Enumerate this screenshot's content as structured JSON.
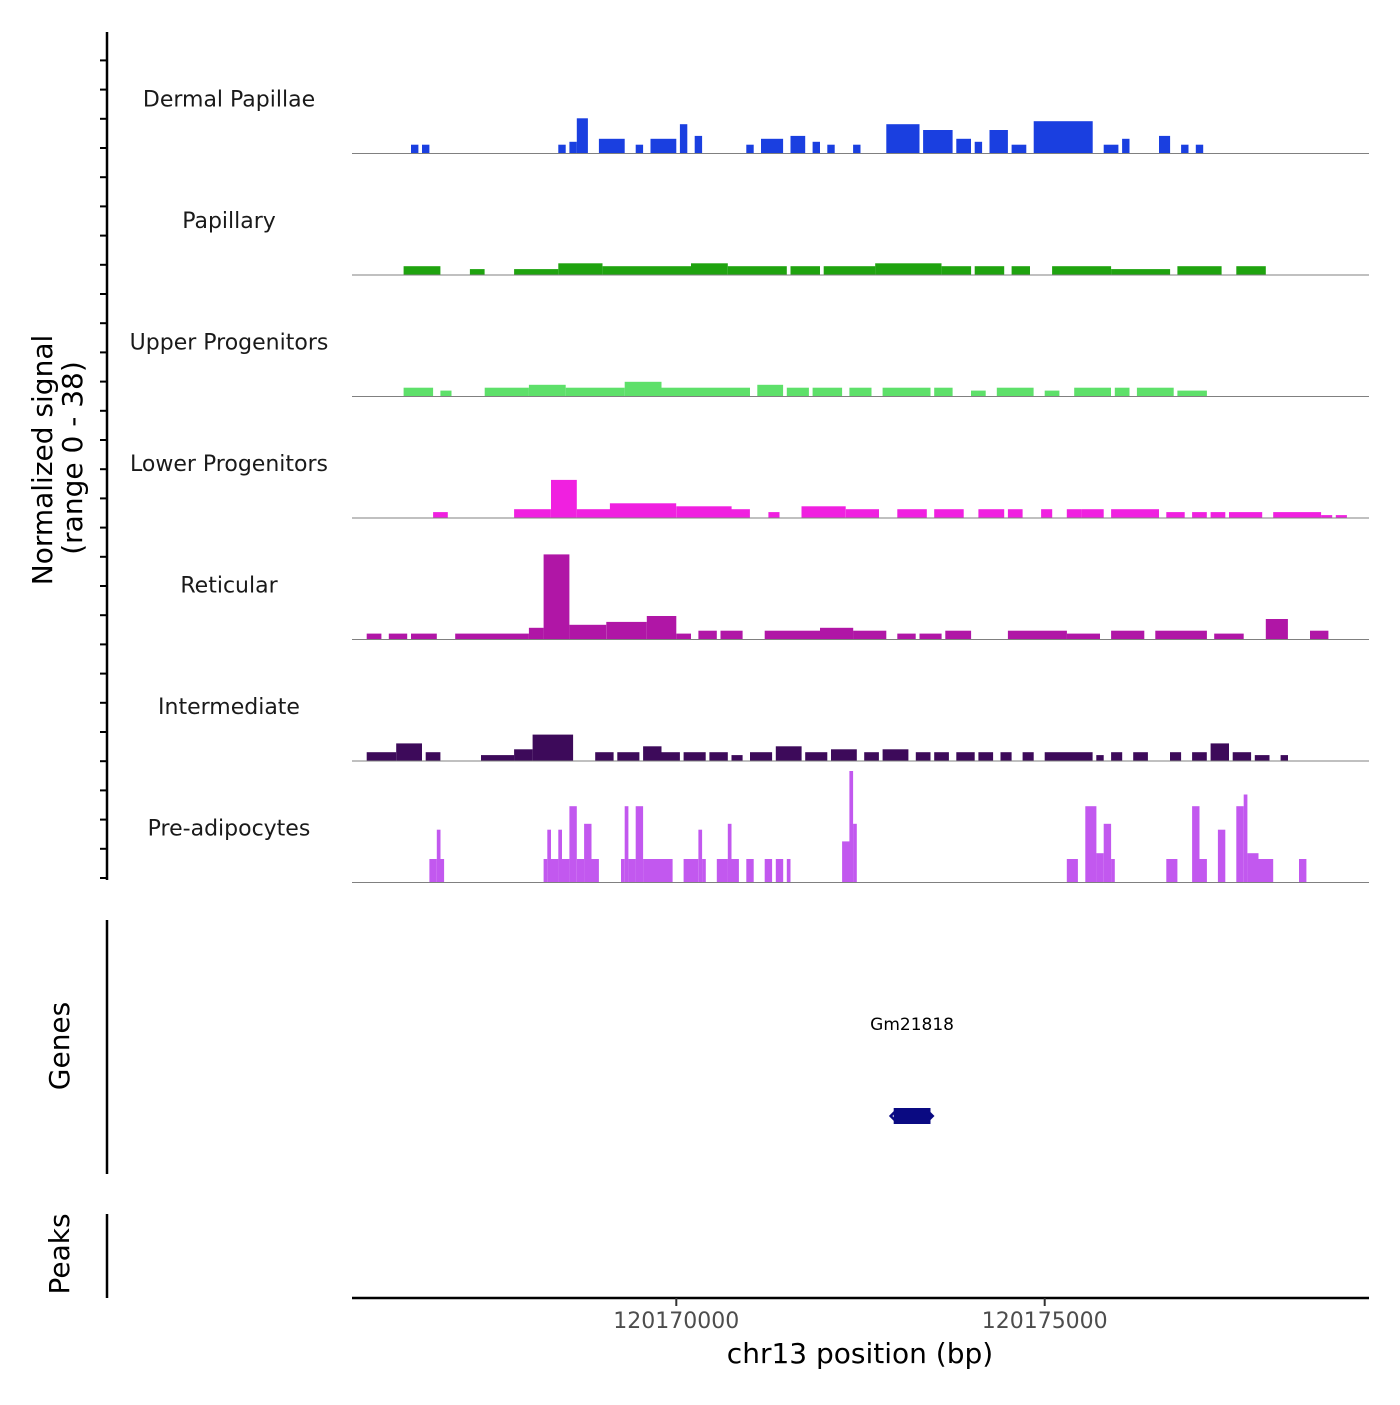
{
  "chart_data": {
    "type": "area",
    "title": "",
    "region": {
      "chromosome": "chr13",
      "start": 120165600,
      "end": 120179400
    },
    "ylabel_line1": "Normalized signal",
    "ylabel_line2": "(range 0 - 38)",
    "ylim": [
      0,
      38
    ],
    "xlabel": "chr13 position (bp)",
    "x_ticks": [
      {
        "value": 120170000,
        "label": "120170000"
      },
      {
        "value": 120175000,
        "label": "120175000"
      }
    ],
    "tracks": [
      {
        "name": "Dermal Papillae",
        "color": "#1a3fe0",
        "segments": [
          [
            120166400,
            120166500,
            3
          ],
          [
            120166550,
            120166650,
            3
          ],
          [
            120168400,
            120168500,
            3
          ],
          [
            120168550,
            120168650,
            4
          ],
          [
            120168650,
            120168800,
            12
          ],
          [
            120168950,
            120169300,
            5
          ],
          [
            120169450,
            120169550,
            3
          ],
          [
            120169650,
            120170000,
            5
          ],
          [
            120170050,
            120170150,
            10
          ],
          [
            120170250,
            120170350,
            6
          ],
          [
            120170950,
            120171050,
            3
          ],
          [
            120171150,
            120171450,
            5
          ],
          [
            120171550,
            120171750,
            6
          ],
          [
            120171850,
            120171950,
            4
          ],
          [
            120172050,
            120172150,
            3
          ],
          [
            120172400,
            120172500,
            3
          ],
          [
            120172850,
            120173300,
            10
          ],
          [
            120173350,
            120173750,
            8
          ],
          [
            120173800,
            120174000,
            5
          ],
          [
            120174050,
            120174150,
            4
          ],
          [
            120174250,
            120174500,
            8
          ],
          [
            120174550,
            120174750,
            3
          ],
          [
            120174850,
            120175650,
            11
          ],
          [
            120175800,
            120176000,
            3
          ],
          [
            120176050,
            120176150,
            5
          ],
          [
            120176550,
            120176700,
            6
          ],
          [
            120176850,
            120176950,
            3
          ],
          [
            120177050,
            120177150,
            3
          ]
        ]
      },
      {
        "name": "Papillary",
        "color": "#1fa30f",
        "segments": [
          [
            120166300,
            120166800,
            3
          ],
          [
            120167200,
            120167400,
            2
          ],
          [
            120167800,
            120168400,
            2
          ],
          [
            120168400,
            120169000,
            4
          ],
          [
            120169000,
            120170200,
            3
          ],
          [
            120170200,
            120170700,
            4
          ],
          [
            120170700,
            120171500,
            3
          ],
          [
            120171550,
            120171950,
            3
          ],
          [
            120172000,
            120172700,
            3
          ],
          [
            120172700,
            120173600,
            4
          ],
          [
            120173600,
            120174000,
            3
          ],
          [
            120174050,
            120174450,
            3
          ],
          [
            120174550,
            120174800,
            3
          ],
          [
            120175100,
            120175900,
            3
          ],
          [
            120175900,
            120176700,
            2
          ],
          [
            120176800,
            120177400,
            3
          ],
          [
            120177600,
            120178000,
            3
          ]
        ]
      },
      {
        "name": "Upper Progenitors",
        "color": "#5ee06a",
        "segments": [
          [
            120166300,
            120166700,
            3
          ],
          [
            120166800,
            120166950,
            2
          ],
          [
            120167400,
            120168000,
            3
          ],
          [
            120168000,
            120168500,
            4
          ],
          [
            120168500,
            120169300,
            3
          ],
          [
            120169300,
            120169800,
            5
          ],
          [
            120169800,
            120170600,
            3
          ],
          [
            120170600,
            120171000,
            3
          ],
          [
            120171100,
            120171450,
            4
          ],
          [
            120171500,
            120171800,
            3
          ],
          [
            120171850,
            120172250,
            3
          ],
          [
            120172350,
            120172650,
            3
          ],
          [
            120172800,
            120173450,
            3
          ],
          [
            120173500,
            120173750,
            3
          ],
          [
            120174000,
            120174200,
            2
          ],
          [
            120174350,
            120174850,
            3
          ],
          [
            120175000,
            120175200,
            2
          ],
          [
            120175400,
            120175900,
            3
          ],
          [
            120175950,
            120176150,
            3
          ],
          [
            120176250,
            120176750,
            3
          ],
          [
            120176800,
            120177200,
            2
          ]
        ]
      },
      {
        "name": "Lower Progenitors",
        "color": "#f020e0",
        "segments": [
          [
            120166700,
            120166900,
            2
          ],
          [
            120167800,
            120168300,
            3
          ],
          [
            120168300,
            120168650,
            13
          ],
          [
            120168650,
            120169100,
            3
          ],
          [
            120169100,
            120170000,
            5
          ],
          [
            120170000,
            120170750,
            4
          ],
          [
            120170750,
            120171000,
            3
          ],
          [
            120171250,
            120171400,
            2
          ],
          [
            120171700,
            120172300,
            4
          ],
          [
            120172300,
            120172750,
            3
          ],
          [
            120173000,
            120173400,
            3
          ],
          [
            120173500,
            120173900,
            3
          ],
          [
            120174100,
            120174450,
            3
          ],
          [
            120174500,
            120174700,
            3
          ],
          [
            120174950,
            120175100,
            3
          ],
          [
            120175300,
            120175500,
            3
          ],
          [
            120175500,
            120175800,
            3
          ],
          [
            120175900,
            120176550,
            3
          ],
          [
            120176650,
            120176900,
            2
          ],
          [
            120177000,
            120177200,
            2
          ],
          [
            120177250,
            120177450,
            2
          ],
          [
            120177500,
            120177950,
            2
          ],
          [
            120178100,
            120178450,
            2
          ],
          [
            120178450,
            120178750,
            2
          ],
          [
            120178750,
            120178900,
            1
          ],
          [
            120178950,
            120179100,
            1
          ]
        ]
      },
      {
        "name": "Reticular",
        "color": "#b016a6",
        "segments": [
          [
            120165800,
            120166000,
            2
          ],
          [
            120166100,
            120166350,
            2
          ],
          [
            120166400,
            120166750,
            2
          ],
          [
            120167000,
            120168000,
            2
          ],
          [
            120168000,
            120168200,
            4
          ],
          [
            120168200,
            120168550,
            29
          ],
          [
            120168550,
            120169050,
            5
          ],
          [
            120169050,
            120169600,
            6
          ],
          [
            120169600,
            120170000,
            8
          ],
          [
            120170000,
            120170200,
            2
          ],
          [
            120170300,
            120170550,
            3
          ],
          [
            120170600,
            120170900,
            3
          ],
          [
            120171200,
            120171950,
            3
          ],
          [
            120171950,
            120172400,
            4
          ],
          [
            120172400,
            120172850,
            3
          ],
          [
            120173000,
            120173250,
            2
          ],
          [
            120173300,
            120173600,
            2
          ],
          [
            120173650,
            120174000,
            3
          ],
          [
            120174500,
            120175300,
            3
          ],
          [
            120175300,
            120175750,
            2
          ],
          [
            120175900,
            120176350,
            3
          ],
          [
            120176500,
            120177200,
            3
          ],
          [
            120177300,
            120177700,
            2
          ],
          [
            120178000,
            120178300,
            7
          ],
          [
            120178600,
            120178850,
            3
          ]
        ]
      },
      {
        "name": "Intermediate",
        "color": "#3d0a5a",
        "segments": [
          [
            120165800,
            120166200,
            3
          ],
          [
            120166200,
            120166550,
            6
          ],
          [
            120166600,
            120166800,
            3
          ],
          [
            120167350,
            120167800,
            2
          ],
          [
            120167800,
            120168050,
            4
          ],
          [
            120168050,
            120168600,
            9
          ],
          [
            120168900,
            120169150,
            3
          ],
          [
            120169200,
            120169500,
            3
          ],
          [
            120169550,
            120169800,
            5
          ],
          [
            120169800,
            120170050,
            3
          ],
          [
            120170100,
            120170400,
            3
          ],
          [
            120170450,
            120170700,
            3
          ],
          [
            120170750,
            120170900,
            2
          ],
          [
            120171000,
            120171300,
            3
          ],
          [
            120171350,
            120171700,
            5
          ],
          [
            120171750,
            120172050,
            3
          ],
          [
            120172100,
            120172450,
            4
          ],
          [
            120172550,
            120172750,
            3
          ],
          [
            120172800,
            120173150,
            4
          ],
          [
            120173250,
            120173450,
            3
          ],
          [
            120173500,
            120173700,
            3
          ],
          [
            120173800,
            120174050,
            3
          ],
          [
            120174100,
            120174300,
            3
          ],
          [
            120174400,
            120174550,
            3
          ],
          [
            120174700,
            120174850,
            3
          ],
          [
            120175000,
            120175350,
            3
          ],
          [
            120175350,
            120175650,
            3
          ],
          [
            120175700,
            120175800,
            2
          ],
          [
            120175900,
            120176050,
            3
          ],
          [
            120176200,
            120176400,
            3
          ],
          [
            120176700,
            120176850,
            3
          ],
          [
            120177000,
            120177200,
            3
          ],
          [
            120177250,
            120177500,
            6
          ],
          [
            120177550,
            120177800,
            3
          ],
          [
            120177850,
            120178050,
            2
          ],
          [
            120178200,
            120178300,
            2
          ]
        ]
      },
      {
        "name": "Pre-adipocytes",
        "color": "#c258ef",
        "segments": [
          [
            120165800,
            120166300,
            0
          ],
          [
            120166650,
            120166750,
            8
          ],
          [
            120166750,
            120166800,
            18
          ],
          [
            120166800,
            120166850,
            8
          ],
          [
            120168200,
            120168250,
            8
          ],
          [
            120168250,
            120168300,
            18
          ],
          [
            120168300,
            120168400,
            8
          ],
          [
            120168400,
            120168450,
            18
          ],
          [
            120168450,
            120168550,
            8
          ],
          [
            120168550,
            120168650,
            26
          ],
          [
            120168650,
            120168750,
            8
          ],
          [
            120168750,
            120168850,
            20
          ],
          [
            120168850,
            120168950,
            8
          ],
          [
            120169250,
            120169300,
            8
          ],
          [
            120169300,
            120169350,
            26
          ],
          [
            120169350,
            120169450,
            8
          ],
          [
            120169450,
            120169550,
            26
          ],
          [
            120169550,
            120169650,
            8
          ],
          [
            120169650,
            120169950,
            8
          ],
          [
            120170100,
            120170300,
            8
          ],
          [
            120170300,
            120170350,
            18
          ],
          [
            120170350,
            120170400,
            8
          ],
          [
            120170550,
            120170700,
            8
          ],
          [
            120170700,
            120170750,
            20
          ],
          [
            120170750,
            120170850,
            8
          ],
          [
            120170950,
            120171050,
            8
          ],
          [
            120171200,
            120171300,
            8
          ],
          [
            120171350,
            120171450,
            8
          ],
          [
            120171500,
            120171550,
            8
          ],
          [
            120172250,
            120172350,
            14
          ],
          [
            120172350,
            120172400,
            38
          ],
          [
            120172400,
            120172450,
            20
          ],
          [
            120175300,
            120175450,
            8
          ],
          [
            120175550,
            120175700,
            26
          ],
          [
            120175700,
            120175800,
            10
          ],
          [
            120175800,
            120175900,
            20
          ],
          [
            120175900,
            120175950,
            8
          ],
          [
            120176650,
            120176800,
            8
          ],
          [
            120177000,
            120177100,
            26
          ],
          [
            120177100,
            120177200,
            8
          ],
          [
            120177350,
            120177450,
            18
          ],
          [
            120177600,
            120177700,
            26
          ],
          [
            120177700,
            120177750,
            30
          ],
          [
            120177750,
            120177900,
            10
          ],
          [
            120177900,
            120178100,
            8
          ],
          [
            120178450,
            120178550,
            8
          ]
        ]
      }
    ],
    "genes_track_label": "Genes",
    "genes": [
      {
        "name": "Gm21818",
        "start": 120172950,
        "end": 120173450,
        "strand": "-",
        "color": "#0a0a82"
      }
    ],
    "peaks_track_label": "Peaks",
    "peaks": []
  }
}
